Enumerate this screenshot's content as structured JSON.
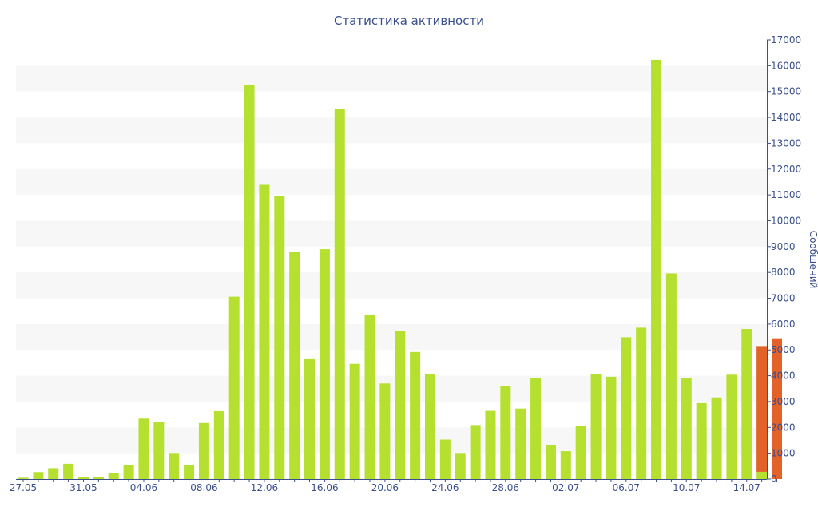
{
  "chart_data": {
    "type": "bar",
    "title": "Статистика активности",
    "xlabel": "",
    "ylabel": "Сообщений",
    "ylim": [
      0,
      17000
    ],
    "y_ticks": [
      0,
      1000,
      2000,
      3000,
      4000,
      5000,
      6000,
      7000,
      8000,
      9000,
      10000,
      11000,
      12000,
      13000,
      14000,
      15000,
      16000,
      17000
    ],
    "x_tick_labels": [
      "27.05",
      "31.05",
      "04.06",
      "08.06",
      "12.06",
      "16.06",
      "20.06",
      "24.06",
      "28.06",
      "02.07",
      "06.07",
      "10.07",
      "14.07"
    ],
    "grid": "alternating horizontal bands",
    "categories": [
      "27.05",
      "28.05",
      "29.05",
      "30.05",
      "31.05",
      "01.06",
      "02.06",
      "03.06",
      "04.06",
      "05.06",
      "06.06",
      "07.06",
      "08.06",
      "09.06",
      "10.06",
      "11.06",
      "12.06",
      "13.06",
      "14.06",
      "15.06",
      "16.06",
      "17.06",
      "18.06",
      "19.06",
      "20.06",
      "21.06",
      "22.06",
      "23.06",
      "24.06",
      "25.06",
      "26.06",
      "27.06",
      "28.06",
      "29.06",
      "30.06",
      "01.07",
      "02.07",
      "03.07",
      "04.07",
      "05.07",
      "06.07",
      "07.07",
      "08.07",
      "09.07",
      "10.07",
      "11.07",
      "12.07",
      "13.07",
      "14.07",
      "15.07",
      "16.07"
    ],
    "values": [
      50,
      270,
      420,
      590,
      80,
      80,
      230,
      550,
      2340,
      2220,
      1010,
      550,
      2170,
      2630,
      7060,
      15270,
      11390,
      10960,
      8790,
      4640,
      8900,
      14320,
      4460,
      6370,
      3700,
      5740,
      4920,
      4080,
      1530,
      1010,
      2090,
      2640,
      3600,
      2730,
      3910,
      1330,
      1080,
      2060,
      4080,
      3960,
      5490,
      5860,
      16230,
      7960,
      3910,
      2940,
      3160,
      4040,
      5810,
      280,
      0
    ],
    "stacked_top": [
      0,
      0,
      0,
      0,
      0,
      0,
      0,
      0,
      0,
      0,
      0,
      0,
      0,
      0,
      0,
      0,
      0,
      0,
      0,
      0,
      0,
      0,
      0,
      0,
      0,
      0,
      0,
      0,
      0,
      0,
      0,
      0,
      0,
      0,
      0,
      0,
      0,
      0,
      0,
      0,
      0,
      0,
      0,
      0,
      0,
      0,
      0,
      0,
      0,
      5150,
      5450
    ],
    "colors": {
      "bar": "#b5e02f",
      "bar_top": "#e2622a",
      "text": "#3a4f8c",
      "band": "#f7f7f7",
      "axis": "#3a4f8c"
    }
  }
}
